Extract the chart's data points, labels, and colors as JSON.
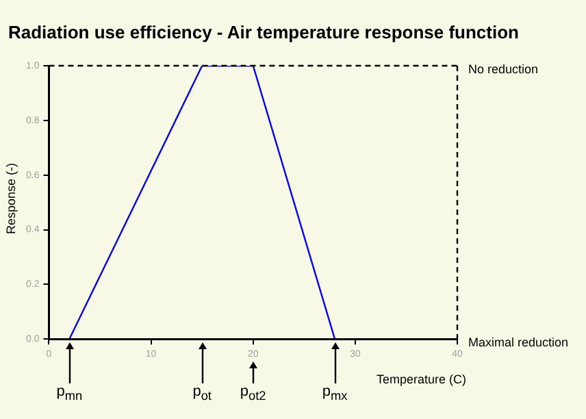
{
  "chart_data": {
    "type": "line",
    "title": "Radiation use efficiency - Air temperature response function",
    "xlabel": "Temperature (C)",
    "ylabel": "Response (-)",
    "x": [
      2,
      15,
      20,
      28
    ],
    "values": [
      0,
      1,
      1,
      0
    ],
    "color": "#0000ff",
    "xlim": [
      0,
      40
    ],
    "xticks": [
      0,
      10,
      20,
      30,
      40
    ],
    "ylim": [
      0,
      1
    ],
    "yticks": [
      {
        "value": 0,
        "label": "0.0"
      },
      {
        "value": 0.2,
        "label": "0.2"
      },
      {
        "value": 0.4,
        "label": "0.4"
      },
      {
        "value": 0.6,
        "label": "0.6"
      },
      {
        "value": 0.8,
        "label": "0.8"
      },
      {
        "value": 1,
        "label": "1.0"
      }
    ],
    "grid": false,
    "legend": false,
    "marker": "none",
    "line_style": "solid",
    "ref_lines": [
      {
        "axis": "y",
        "value": 1,
        "label": "No reduction",
        "line_style": "dashed"
      },
      {
        "axis": "y",
        "value": 0,
        "label": "Maximal reduction",
        "line_style": "solid"
      },
      {
        "axis": "x",
        "value": 40,
        "label": null,
        "line_style": "dashed"
      }
    ],
    "annotations": [
      {
        "text": "p$_{mn}$",
        "x": 2,
        "y": 0
      },
      {
        "text": "p$_{ot}$",
        "x": 15,
        "y": 0
      },
      {
        "text": "p$_{ot2}$",
        "x": 20,
        "y": 0
      },
      {
        "text": "p$_{mx}$",
        "x": 28,
        "y": 0
      }
    ]
  }
}
